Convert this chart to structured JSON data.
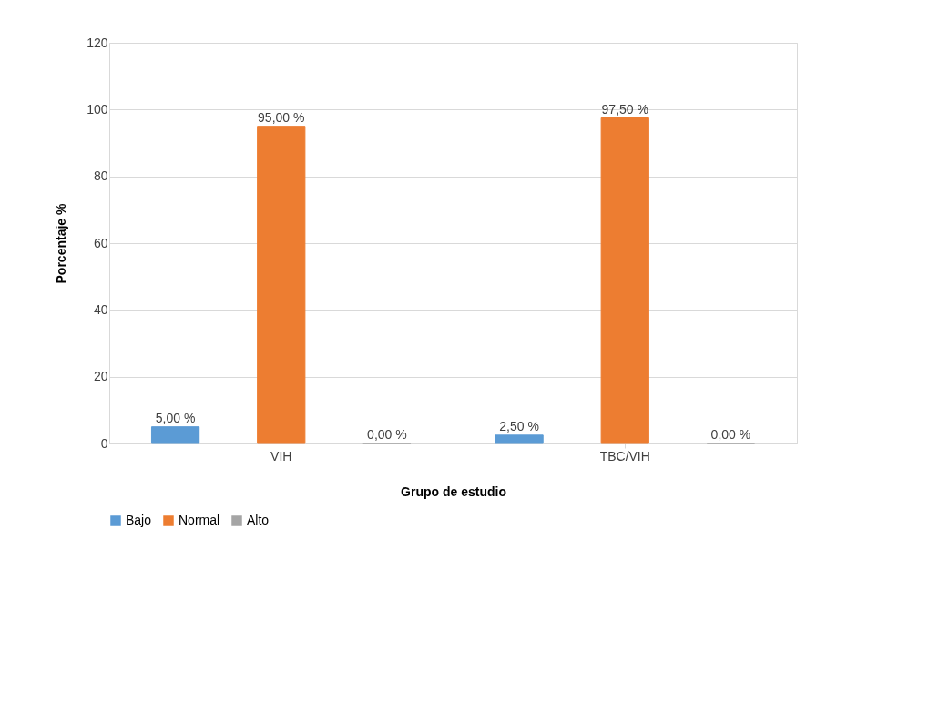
{
  "chart_data": {
    "type": "bar",
    "xlabel": "Grupo de estudio",
    "ylabel": "Porcentaje %",
    "categories": [
      "VIH",
      "TBC/VIH"
    ],
    "series": [
      {
        "name": "Bajo",
        "color": "#5b9bd5",
        "values": [
          5,
          2.5
        ],
        "value_labels": [
          "5,00 %",
          "2,50 %"
        ]
      },
      {
        "name": "Normal",
        "color": "#ed7d31",
        "values": [
          95,
          97.5
        ],
        "value_labels": [
          "95,00 %",
          "97,50 %"
        ]
      },
      {
        "name": "Alto",
        "color": "#a5a5a5",
        "values": [
          0,
          0
        ],
        "value_labels": [
          "0,00 %",
          "0,00 %"
        ]
      }
    ],
    "ylim": [
      0,
      120
    ],
    "yticks": [
      0,
      20,
      40,
      60,
      80,
      100,
      120
    ],
    "grid": "y",
    "legend": "bottom"
  }
}
